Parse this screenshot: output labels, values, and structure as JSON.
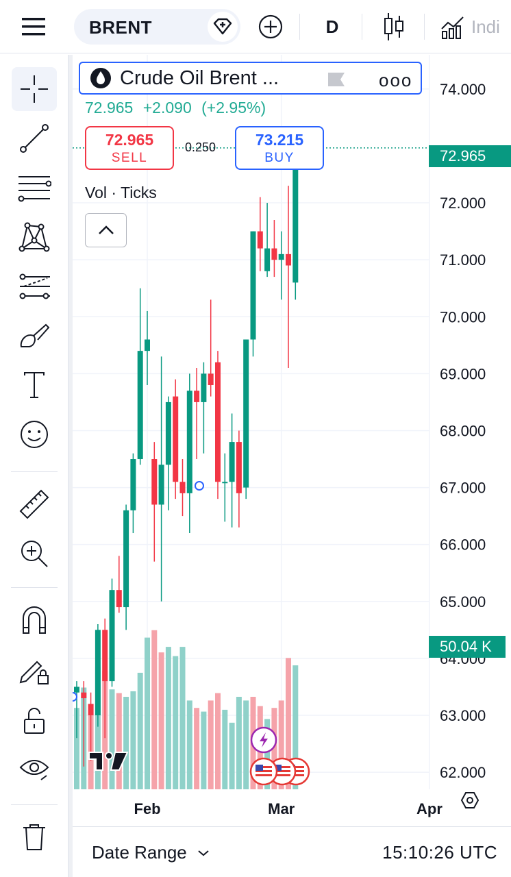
{
  "toolbar": {
    "symbol": "BRENT",
    "interval": "D",
    "indicators_label": "Indi"
  },
  "legend": {
    "title": "Crude Oil Brent ...",
    "last": "72.965",
    "change": "+2.090",
    "change_pct": "(+2.95%)",
    "more": "ooo"
  },
  "trade": {
    "sell_price": "72.965",
    "sell_label": "SELL",
    "buy_price": "73.215",
    "buy_label": "BUY",
    "spread": "0.250"
  },
  "volume_pane": {
    "label": "Vol · Ticks",
    "badge": "50.04 K"
  },
  "price_badge": "72.965",
  "bottom": {
    "date_range_label": "Date Range",
    "clock": "15:10:26 UTC"
  },
  "colors": {
    "up": "#089981",
    "down": "#f23645",
    "up_volume": "#8fd1c9",
    "down_volume": "#f5a3aa",
    "accent": "#2962ff",
    "event_purple": "#9c27b0"
  },
  "chart_data": {
    "type": "candlestick",
    "y_axis_ticks": [
      "74.000",
      "72.000",
      "71.000",
      "70.000",
      "69.000",
      "68.000",
      "67.000",
      "66.000",
      "65.000",
      "64.000",
      "63.000",
      "62.000"
    ],
    "ylim": [
      61.7,
      74.6
    ],
    "x_tick_labels": [
      {
        "label": "Feb",
        "index": 10
      },
      {
        "label": "Mar",
        "index": 29
      },
      {
        "label": "Apr",
        "index": 50
      }
    ],
    "last_price": 72.965,
    "series": [
      {
        "name": "",
        "ohlc": [
          [
            63.4,
            63.6,
            62.6,
            63.5
          ],
          [
            63.4,
            63.6,
            62.1,
            63.3
          ],
          [
            63.2,
            63.4,
            62.2,
            63.0
          ],
          [
            63.0,
            64.6,
            62.8,
            64.5
          ],
          [
            64.5,
            64.7,
            62.6,
            63.6
          ],
          [
            63.6,
            65.4,
            63.5,
            65.2
          ],
          [
            65.2,
            65.8,
            64.8,
            64.9
          ],
          [
            64.9,
            66.7,
            64.5,
            66.6
          ],
          [
            66.6,
            67.6,
            66.2,
            67.5
          ],
          [
            67.5,
            70.5,
            67.4,
            69.4
          ],
          [
            69.4,
            70.1,
            68.8,
            69.6
          ],
          [
            67.5,
            67.8,
            65.7,
            66.7
          ],
          [
            66.7,
            69.3,
            65.0,
            67.4
          ],
          [
            67.4,
            68.6,
            66.6,
            68.5
          ],
          [
            68.6,
            68.9,
            66.8,
            67.1
          ],
          [
            67.1,
            67.5,
            66.5,
            66.9
          ],
          [
            66.9,
            69.0,
            66.2,
            68.7
          ],
          [
            68.7,
            69.1,
            67.5,
            68.5
          ],
          [
            68.5,
            69.2,
            67.6,
            69.0
          ],
          [
            69.0,
            70.3,
            68.6,
            68.8
          ],
          [
            69.2,
            69.4,
            66.8,
            67.1
          ],
          [
            67.1,
            67.6,
            66.4,
            67.1
          ],
          [
            67.1,
            68.3,
            66.3,
            67.8
          ],
          [
            67.8,
            68.0,
            66.3,
            66.9
          ],
          [
            67.0,
            69.6,
            66.8,
            69.6
          ],
          [
            69.6,
            71.5,
            69.3,
            71.5
          ],
          [
            71.5,
            72.1,
            70.8,
            71.2
          ],
          [
            70.8,
            72.0,
            70.7,
            71.2
          ],
          [
            71.2,
            71.7,
            70.7,
            71.0
          ],
          [
            71.0,
            71.5,
            70.3,
            71.1
          ],
          [
            71.1,
            72.3,
            69.1,
            70.9
          ],
          [
            70.6,
            73.0,
            70.3,
            72.965
          ]
        ]
      },
      {
        "name": "",
        "volume": [
          [
            0.44,
            "up"
          ],
          [
            0.55,
            "up"
          ],
          [
            0.4,
            "down"
          ],
          [
            0.66,
            "up"
          ],
          [
            0.64,
            "down"
          ],
          [
            0.54,
            "up"
          ],
          [
            0.52,
            "down"
          ],
          [
            0.5,
            "up"
          ],
          [
            0.53,
            "up"
          ],
          [
            0.63,
            "up"
          ],
          [
            0.82,
            "up"
          ],
          [
            0.86,
            "down"
          ],
          [
            0.74,
            "down"
          ],
          [
            0.77,
            "up"
          ],
          [
            0.72,
            "up"
          ],
          [
            0.77,
            "up"
          ],
          [
            0.48,
            "up"
          ],
          [
            0.44,
            "down"
          ],
          [
            0.42,
            "up"
          ],
          [
            0.48,
            "down"
          ],
          [
            0.52,
            "down"
          ],
          [
            0.43,
            "up"
          ],
          [
            0.36,
            "up"
          ],
          [
            0.5,
            "up"
          ],
          [
            0.48,
            "up"
          ],
          [
            0.5,
            "down"
          ],
          [
            0.45,
            "down"
          ],
          [
            0.38,
            "up"
          ],
          [
            0.44,
            "down"
          ],
          [
            0.48,
            "down"
          ],
          [
            0.71,
            "down"
          ],
          [
            0.67,
            "up"
          ]
        ]
      }
    ],
    "volume_ylim": [
      0,
      1
    ],
    "grid": true
  }
}
